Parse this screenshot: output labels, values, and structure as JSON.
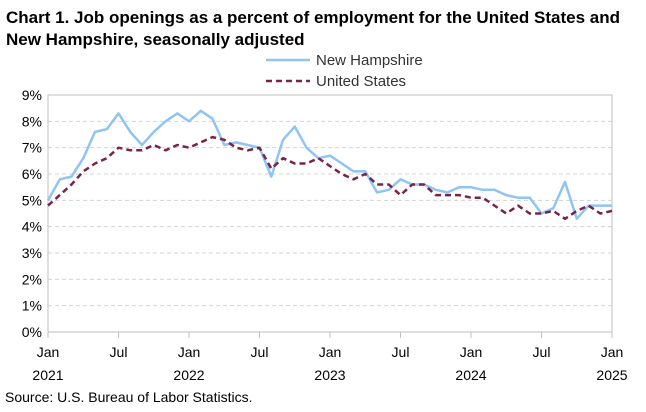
{
  "chart_data": {
    "type": "line",
    "title": "Chart 1. Job openings as a percent of employment for the United States and New Hampshire, seasonally adjusted",
    "source": "Source: U.S. Bureau of Labor Statistics.",
    "xlabel": "",
    "ylabel": "",
    "ylim": [
      0,
      9
    ],
    "yticks": [
      "0%",
      "1%",
      "2%",
      "3%",
      "4%",
      "5%",
      "6%",
      "7%",
      "8%",
      "9%"
    ],
    "grid": true,
    "legend_position": "top",
    "xticks": [
      {
        "index": 0,
        "month": "Jan",
        "year": "2021"
      },
      {
        "index": 6,
        "month": "Jul",
        "year": ""
      },
      {
        "index": 12,
        "month": "Jan",
        "year": "2022"
      },
      {
        "index": 18,
        "month": "Jul",
        "year": ""
      },
      {
        "index": 24,
        "month": "Jan",
        "year": "2023"
      },
      {
        "index": 30,
        "month": "Jul",
        "year": ""
      },
      {
        "index": 36,
        "month": "Jan",
        "year": "2024"
      },
      {
        "index": 42,
        "month": "Jul",
        "year": ""
      },
      {
        "index": 48,
        "month": "Jan",
        "year": "2025"
      }
    ],
    "series": [
      {
        "name": "New Hampshire",
        "color": "#8fc4f4",
        "style": "solid",
        "values": [
          5.0,
          5.8,
          5.9,
          6.6,
          7.6,
          7.7,
          8.3,
          7.6,
          7.1,
          7.6,
          8.0,
          8.3,
          8.0,
          8.4,
          8.1,
          7.1,
          7.2,
          7.1,
          7.0,
          5.9,
          7.3,
          7.8,
          7.0,
          6.6,
          6.7,
          6.4,
          6.1,
          6.1,
          5.3,
          5.4,
          5.8,
          5.6,
          5.6,
          5.4,
          5.3,
          5.5,
          5.5,
          5.4,
          5.4,
          5.2,
          5.1,
          5.1,
          4.5,
          4.7,
          5.7,
          4.3,
          4.8,
          4.8,
          4.8
        ]
      },
      {
        "name": "United States",
        "color": "#7a2348",
        "style": "dashed",
        "values": [
          4.8,
          5.2,
          5.6,
          6.1,
          6.4,
          6.6,
          7.0,
          6.9,
          6.9,
          7.1,
          6.9,
          7.1,
          7.0,
          7.2,
          7.4,
          7.3,
          7.0,
          6.9,
          7.0,
          6.2,
          6.6,
          6.4,
          6.4,
          6.6,
          6.3,
          6.0,
          5.8,
          6.0,
          5.6,
          5.6,
          5.2,
          5.6,
          5.6,
          5.2,
          5.2,
          5.2,
          5.1,
          5.1,
          4.8,
          4.5,
          4.8,
          4.5,
          4.5,
          4.6,
          4.3,
          4.6,
          4.8,
          4.5,
          4.6
        ]
      }
    ]
  }
}
